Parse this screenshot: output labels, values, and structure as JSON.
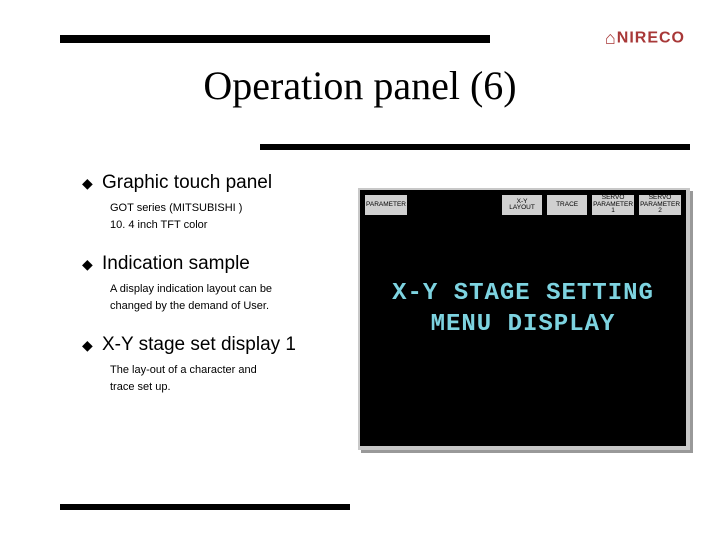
{
  "logo": {
    "mark": "⌂",
    "text": "NIRECO",
    "color": "#a83838"
  },
  "title": "Operation panel (6)",
  "bullets": [
    {
      "head": "Graphic touch panel",
      "sub": "GOT series (MITSUBISHI )\n10. 4 inch TFT color"
    },
    {
      "head": "Indication sample",
      "sub": "A display indication layout can be\n changed by the demand of User."
    },
    {
      "head": "X-Y stage set display 1",
      "sub": "The lay-out of a character and\ntrace set up."
    }
  ],
  "panel": {
    "buttons": [
      {
        "label": "PARAMETER",
        "blank": false
      },
      {
        "label": "",
        "blank": true
      },
      {
        "label": "",
        "blank": true
      },
      {
        "label": "X-Y\nLAYOUT",
        "blank": false
      },
      {
        "label": "TRACE",
        "blank": false
      },
      {
        "label": "SERVO\nPARAMETER\n1",
        "blank": false
      },
      {
        "label": "SERVO\nPARAMETER\n2",
        "blank": false
      }
    ],
    "display_line1": "X-Y STAGE SETTING",
    "display_line2": "MENU DISPLAY",
    "display_color": "#7dd3e0",
    "bg_color": "#000000"
  }
}
